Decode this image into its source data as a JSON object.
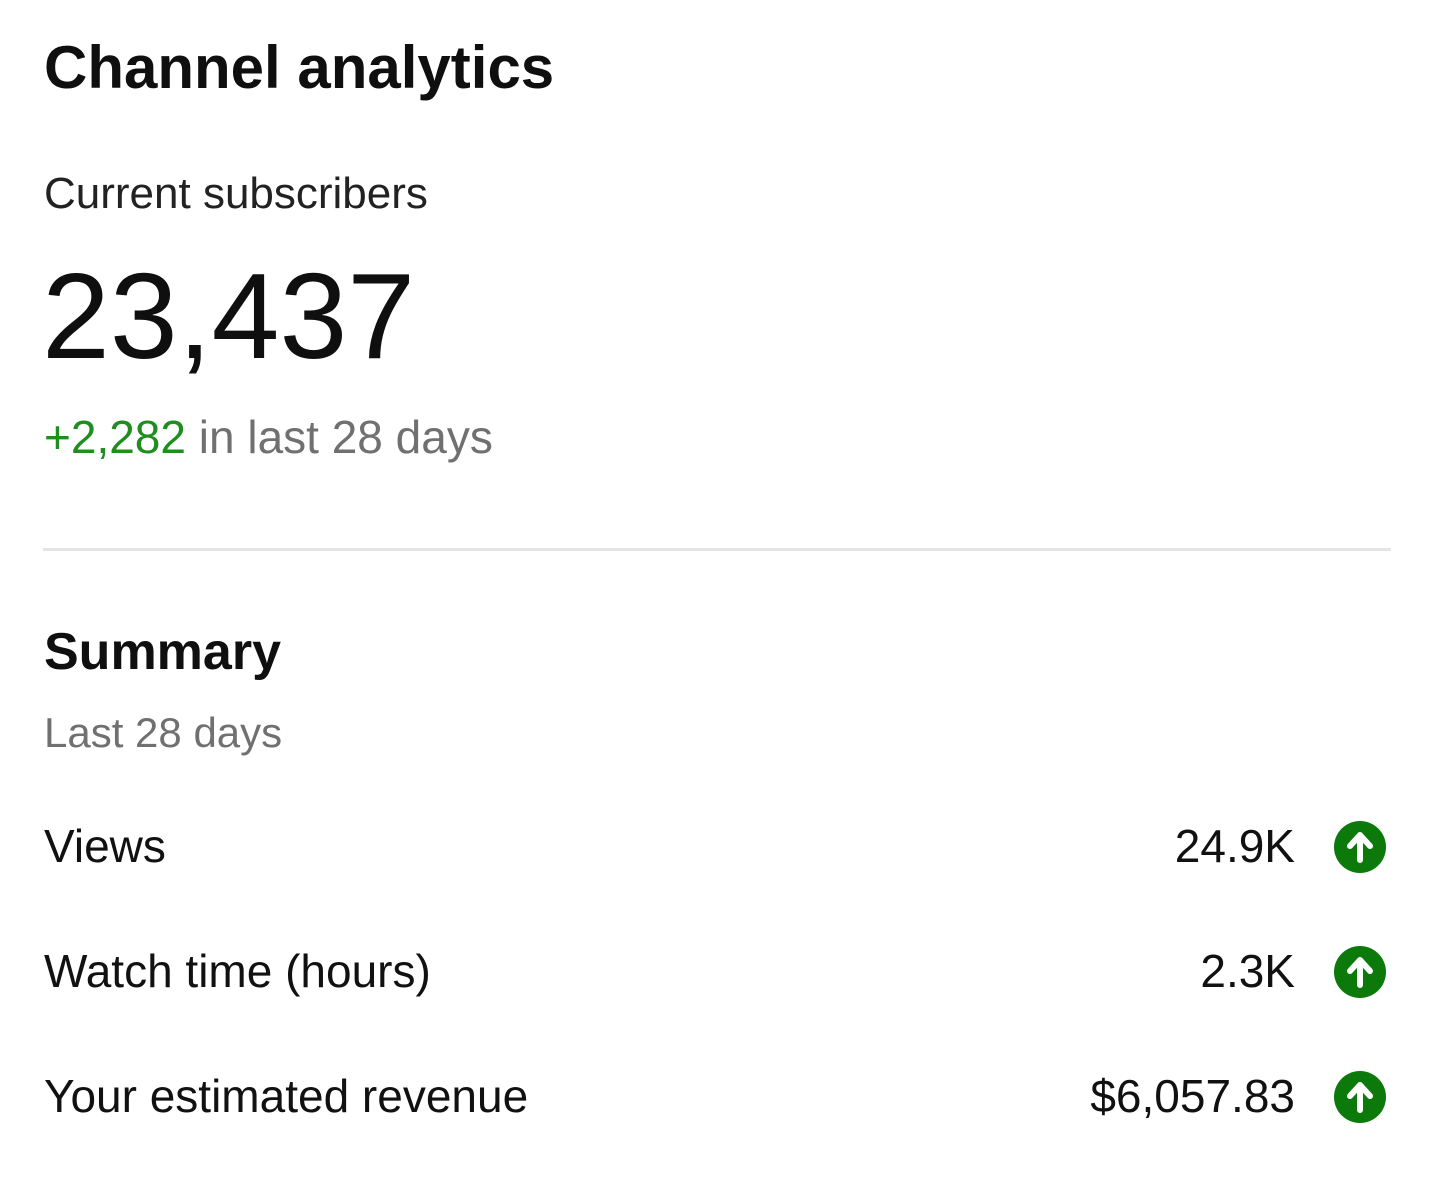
{
  "header": {
    "title": "Channel analytics"
  },
  "subscribers": {
    "label": "Current subscribers",
    "count": "23,437",
    "change": "+2,282",
    "change_period": "in last 28 days"
  },
  "summary": {
    "title": "Summary",
    "period": "Last 28 days",
    "rows": [
      {
        "label": "Views",
        "value": "24.9K"
      },
      {
        "label": "Watch time (hours)",
        "value": "2.3K"
      },
      {
        "label": "Your estimated revenue",
        "value": "$6,057.83"
      }
    ]
  }
}
